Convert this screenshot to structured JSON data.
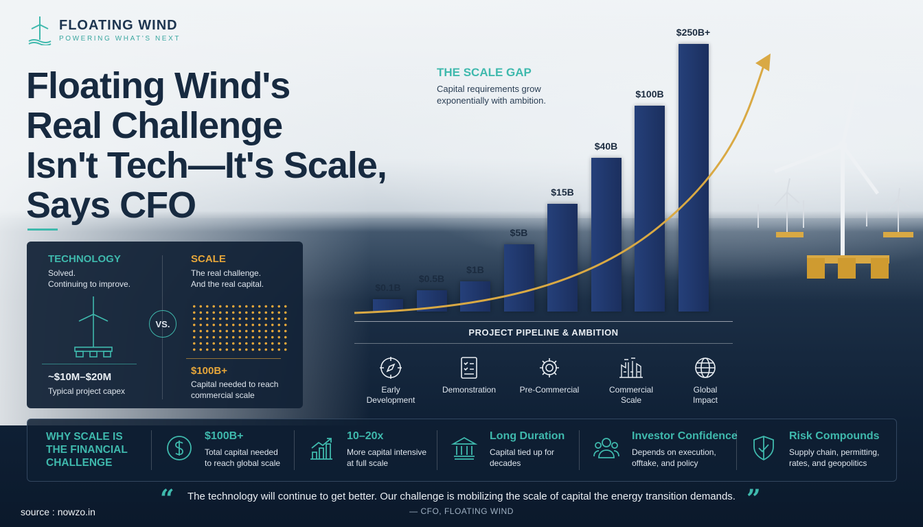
{
  "logo": {
    "title": "FLOATING WIND",
    "tagline": "POWERING WHAT'S NEXT"
  },
  "headline": [
    "Floating Wind's",
    "Real Challenge",
    "Isn't Tech—It's Scale,",
    "Says CFO"
  ],
  "comparison": {
    "technology": {
      "title": "TECHNOLOGY",
      "lines": [
        "Solved.",
        "Continuing to improve."
      ],
      "value": "~$10M–$20M",
      "caption": "Typical project capex"
    },
    "vs": "VS.",
    "scale": {
      "title": "SCALE",
      "lines": [
        "The real challenge.",
        "And the real capital."
      ],
      "value": "$100B+",
      "caption": [
        "Capital needed to reach",
        "commercial scale"
      ]
    }
  },
  "chart": {
    "title": "THE SCALE GAP",
    "subtitle": [
      "Capital requirements grow",
      "exponentially with ambition."
    ],
    "pipeline_title": "PROJECT PIPELINE & AMBITION",
    "stages": [
      {
        "label": [
          "Early",
          "Development"
        ],
        "icon": "compass-icon"
      },
      {
        "label": [
          "Demonstration"
        ],
        "icon": "clipboard-icon"
      },
      {
        "label": [
          "Pre-Commercial"
        ],
        "icon": "gear-icon"
      },
      {
        "label": [
          "Commercial",
          "Scale"
        ],
        "icon": "factory-icon"
      },
      {
        "label": [
          "Global",
          "Impact"
        ],
        "icon": "globe-icon"
      }
    ]
  },
  "chart_data": {
    "type": "bar",
    "categories": [
      "$0.1B",
      "$0.5B",
      "$1B",
      "$5B",
      "$15B",
      "$40B",
      "$100B",
      "$250B+"
    ],
    "values": [
      0.1,
      0.5,
      1,
      5,
      15,
      40,
      100,
      250
    ],
    "labels": [
      "$0.1B",
      "$0.5B",
      "$1B",
      "$5B",
      "$15B",
      "$40B",
      "$100B",
      "$250B+"
    ],
    "scale": "log-like visual",
    "trend_arrow": true,
    "bar_color": "#22396e",
    "arrow_color": "#d9a944"
  },
  "why": {
    "title": [
      "WHY SCALE IS",
      "THE FINANCIAL",
      "CHALLENGE"
    ],
    "items": [
      {
        "head": "$100B+",
        "body": [
          "Total capital needed",
          "to reach global scale"
        ],
        "icon": "dollar-icon"
      },
      {
        "head": "10–20x",
        "body": [
          "More capital intensive",
          "at full scale"
        ],
        "icon": "bar-chart-icon"
      },
      {
        "head": "Long Duration",
        "body": [
          "Capital tied up for",
          "decades"
        ],
        "icon": "bank-icon"
      },
      {
        "head": "Investor Confidence",
        "body": [
          "Depends on execution,",
          "offtake, and policy"
        ],
        "icon": "people-icon"
      },
      {
        "head": "Risk Compounds",
        "body": [
          "Supply chain, permitting,",
          "rates, and geopolitics"
        ],
        "icon": "shield-icon"
      }
    ]
  },
  "quote": {
    "text": "The technology will continue to get better. Our challenge is mobilizing the scale of capital the energy transition demands.",
    "attribution": "— CFO, FLOATING WIND"
  },
  "source": "source : nowzo.in",
  "colors": {
    "accent": "#3fb9ad",
    "gold": "#e6a63a",
    "navy": "#172a40"
  }
}
